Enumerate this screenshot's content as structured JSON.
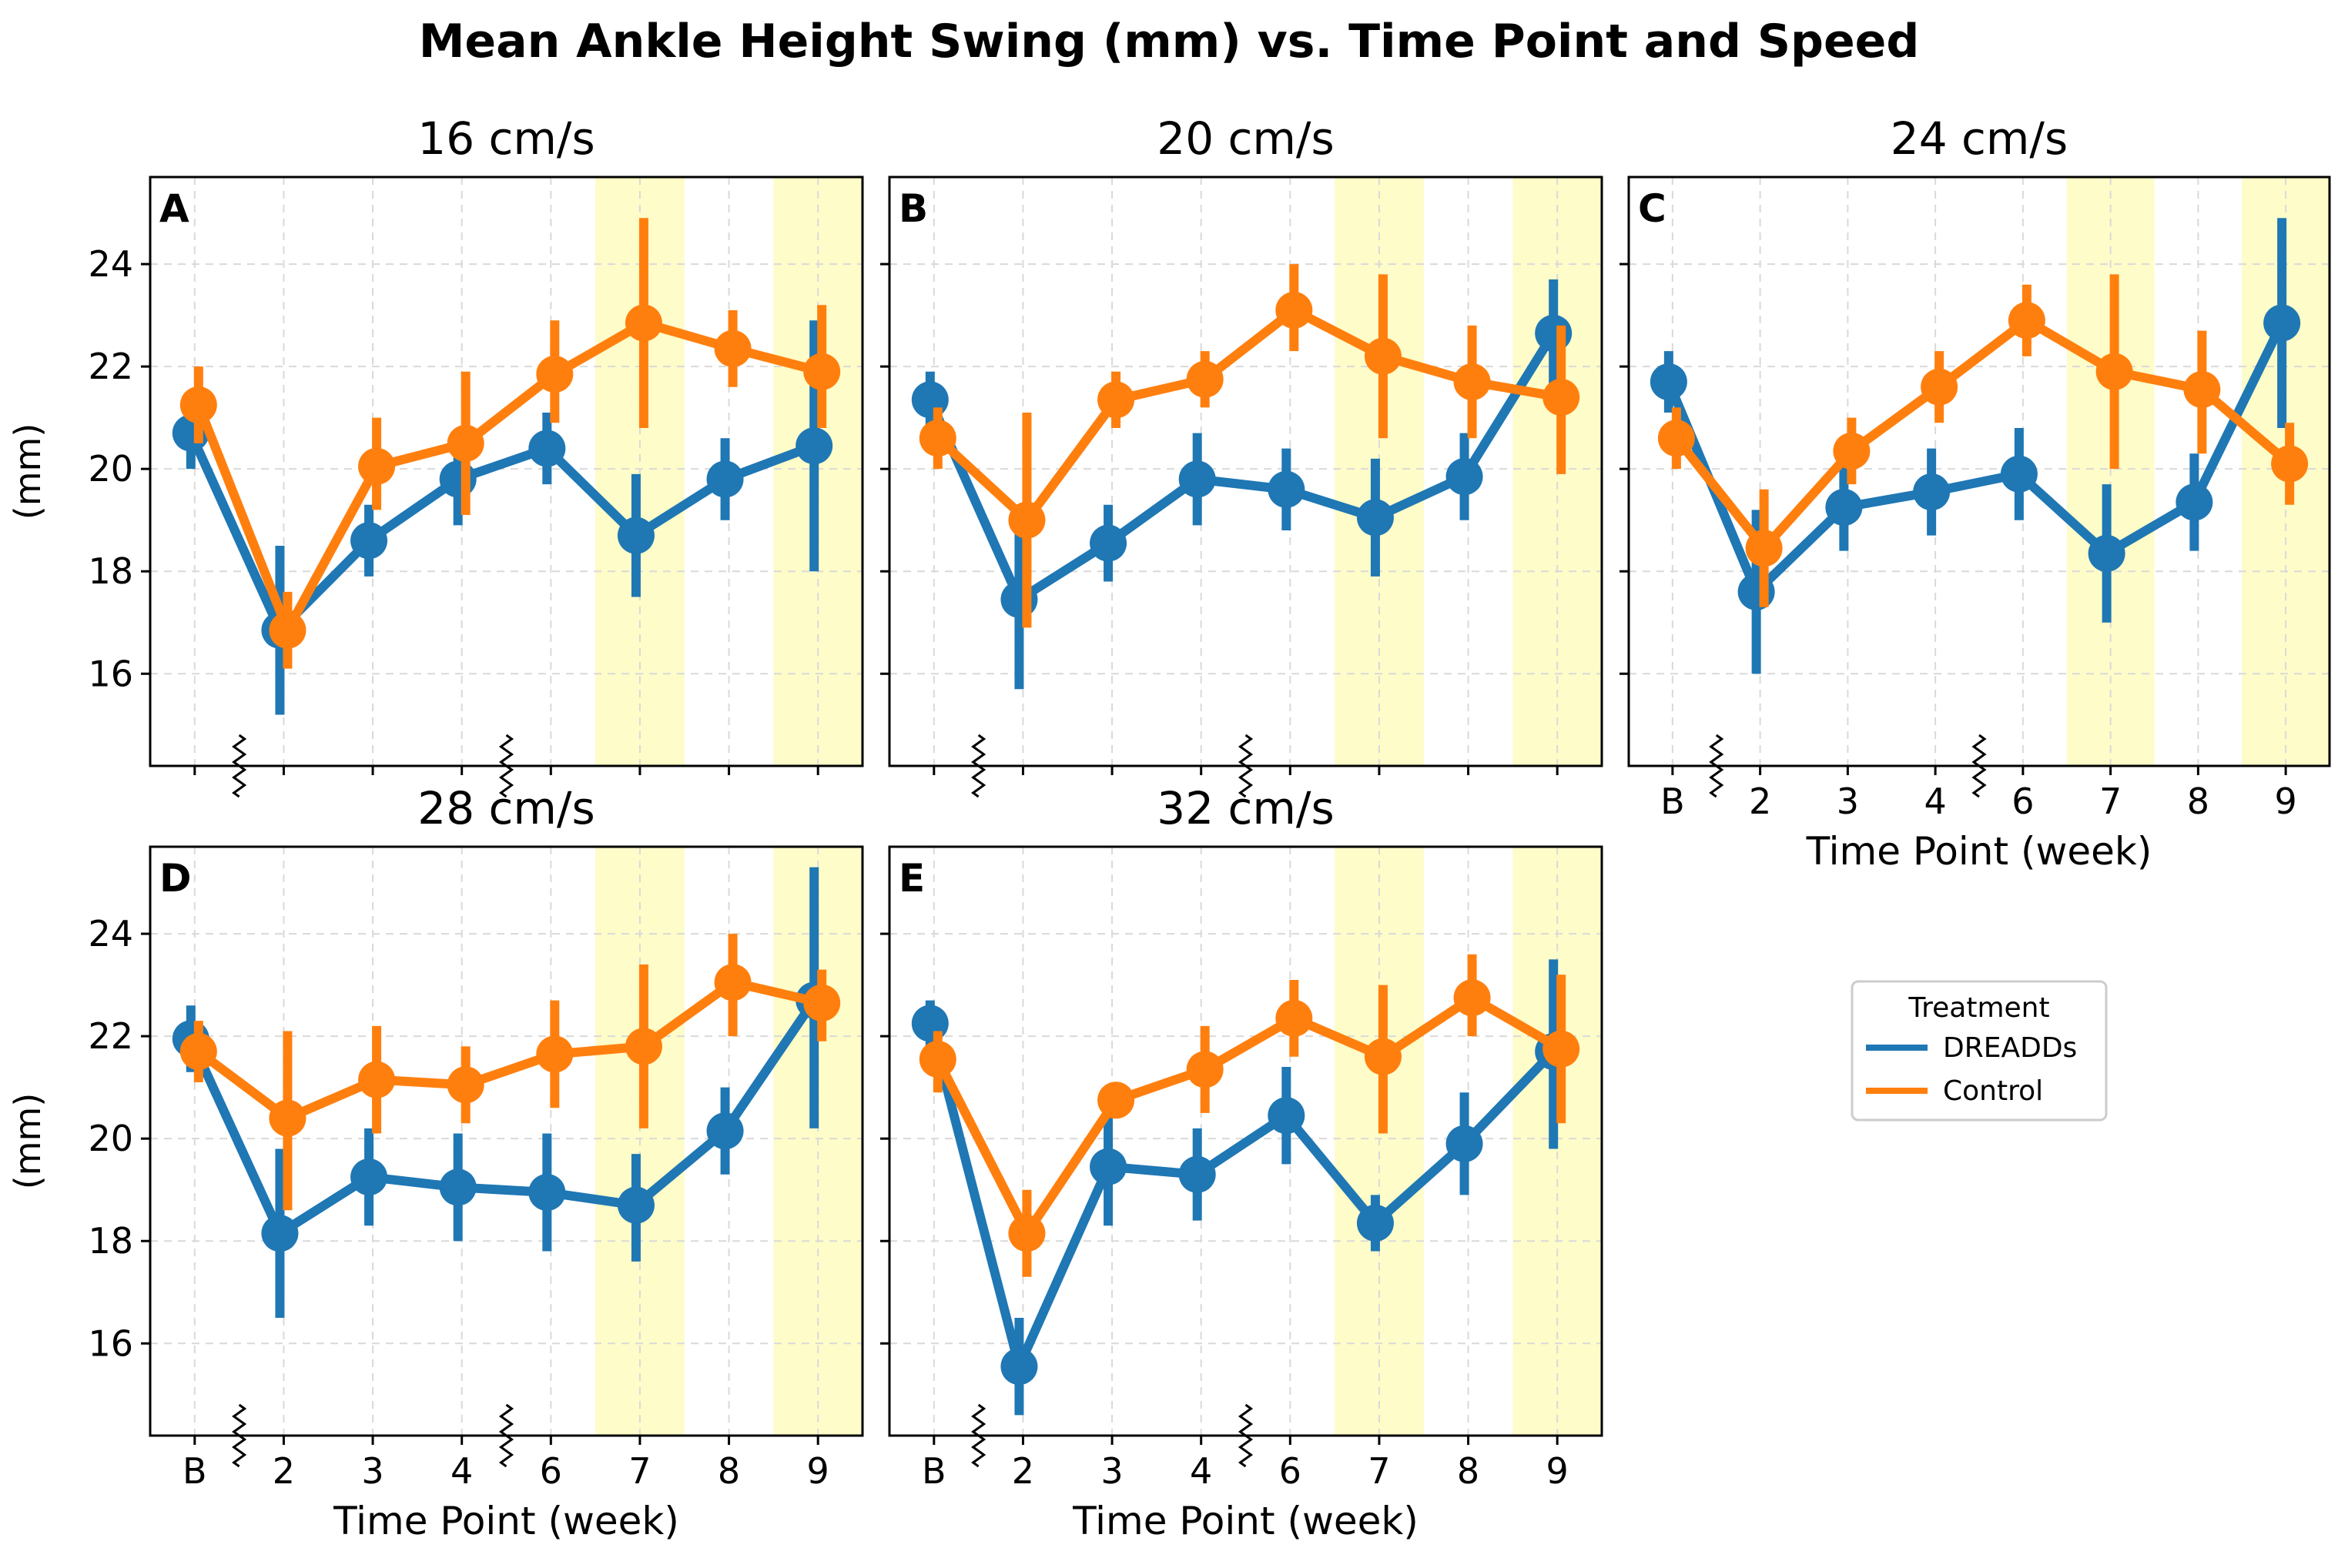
{
  "figure": {
    "title": "Mean Ankle Height Swing (mm) vs. Time Point and Speed"
  },
  "legend": {
    "title": "Treatment",
    "items": [
      "DREADDs",
      "Control"
    ]
  },
  "colors": {
    "dreadds": "#1f77b4",
    "control": "#ff7f0e",
    "highlight": "#fefcc8",
    "grid": "#d9d9d9"
  },
  "chart_data": [
    {
      "type": "line",
      "panel_letter": "A",
      "title": "16 cm/s",
      "xlabel": "",
      "ylabel": "(mm)",
      "x": [
        "B",
        "2",
        "3",
        "4",
        "6",
        "7",
        "8",
        "9"
      ],
      "x_tick_labels_shown": false,
      "ylim": [
        14.2,
        25.7
      ],
      "yticks": [
        16,
        18,
        20,
        22,
        24
      ],
      "grid": true,
      "highlighted_weeks": [
        "7",
        "9"
      ],
      "axis_breaks_after": [
        "B",
        "4"
      ],
      "series": [
        {
          "name": "DREADDs",
          "values": [
            20.7,
            16.85,
            18.6,
            19.8,
            20.4,
            18.7,
            19.8,
            20.45
          ],
          "err_low": [
            20.0,
            15.2,
            17.9,
            18.9,
            19.7,
            17.5,
            19.0,
            18.0
          ],
          "err_high": [
            21.3,
            18.5,
            19.3,
            20.7,
            21.1,
            19.9,
            20.6,
            22.9
          ]
        },
        {
          "name": "Control",
          "values": [
            21.25,
            16.85,
            20.05,
            20.5,
            21.85,
            22.85,
            22.35,
            21.9
          ],
          "err_low": [
            20.5,
            16.1,
            19.2,
            19.1,
            20.9,
            20.8,
            21.6,
            20.8
          ],
          "err_high": [
            22.0,
            17.6,
            21.0,
            21.9,
            22.9,
            24.9,
            23.1,
            23.2
          ]
        }
      ]
    },
    {
      "type": "line",
      "panel_letter": "B",
      "title": "20 cm/s",
      "xlabel": "",
      "ylabel": "",
      "x": [
        "B",
        "2",
        "3",
        "4",
        "6",
        "7",
        "8",
        "9"
      ],
      "x_tick_labels_shown": false,
      "ylim": [
        14.2,
        25.7
      ],
      "yticks": [
        16,
        18,
        20,
        22,
        24
      ],
      "grid": true,
      "highlighted_weeks": [
        "7",
        "9"
      ],
      "axis_breaks_after": [
        "B",
        "4"
      ],
      "series": [
        {
          "name": "DREADDs",
          "values": [
            21.35,
            17.45,
            18.55,
            19.8,
            19.6,
            19.05,
            19.85,
            22.65
          ],
          "err_low": [
            20.7,
            15.7,
            17.8,
            18.9,
            18.8,
            17.9,
            19.0,
            21.6
          ],
          "err_high": [
            21.9,
            19.2,
            19.3,
            20.7,
            20.4,
            20.2,
            20.7,
            23.7
          ]
        },
        {
          "name": "Control",
          "values": [
            20.6,
            19.0,
            21.35,
            21.75,
            23.1,
            22.2,
            21.7,
            21.4
          ],
          "err_low": [
            20.0,
            16.9,
            20.8,
            21.2,
            22.3,
            20.6,
            20.6,
            19.9
          ],
          "err_high": [
            21.2,
            21.1,
            21.9,
            22.3,
            24.0,
            23.8,
            22.8,
            22.8
          ]
        }
      ]
    },
    {
      "type": "line",
      "panel_letter": "C",
      "title": "24 cm/s",
      "xlabel": "Time Point (week)",
      "ylabel": "",
      "x": [
        "B",
        "2",
        "3",
        "4",
        "6",
        "7",
        "8",
        "9"
      ],
      "x_tick_labels_shown": true,
      "ylim": [
        14.2,
        25.7
      ],
      "yticks": [
        16,
        18,
        20,
        22,
        24
      ],
      "grid": true,
      "highlighted_weeks": [
        "7",
        "9"
      ],
      "axis_breaks_after": [
        "B",
        "4"
      ],
      "series": [
        {
          "name": "DREADDs",
          "values": [
            21.7,
            17.6,
            19.25,
            19.55,
            19.9,
            18.35,
            19.35,
            22.85
          ],
          "err_low": [
            21.1,
            16.0,
            18.4,
            18.7,
            19.0,
            17.0,
            18.4,
            20.8
          ],
          "err_high": [
            22.3,
            19.2,
            20.1,
            20.4,
            20.8,
            19.7,
            20.3,
            24.9
          ]
        },
        {
          "name": "Control",
          "values": [
            20.6,
            18.45,
            20.35,
            21.6,
            22.9,
            21.9,
            21.55,
            20.1
          ],
          "err_low": [
            20.0,
            17.3,
            19.7,
            20.9,
            22.2,
            20.0,
            20.3,
            19.3
          ],
          "err_high": [
            21.2,
            19.6,
            21.0,
            22.3,
            23.6,
            23.8,
            22.7,
            20.9
          ]
        }
      ]
    },
    {
      "type": "line",
      "panel_letter": "D",
      "title": "28 cm/s",
      "xlabel": "Time Point (week)",
      "ylabel": "(mm)",
      "x": [
        "B",
        "2",
        "3",
        "4",
        "6",
        "7",
        "8",
        "9"
      ],
      "x_tick_labels_shown": true,
      "ylim": [
        14.2,
        25.7
      ],
      "yticks": [
        16,
        18,
        20,
        22,
        24
      ],
      "grid": true,
      "highlighted_weeks": [
        "7",
        "9"
      ],
      "axis_breaks_after": [
        "B",
        "4"
      ],
      "series": [
        {
          "name": "DREADDs",
          "values": [
            21.95,
            18.15,
            19.25,
            19.05,
            18.95,
            18.7,
            20.15,
            22.7
          ],
          "err_low": [
            21.3,
            16.5,
            18.3,
            18.0,
            17.8,
            17.6,
            19.3,
            20.2
          ],
          "err_high": [
            22.6,
            19.8,
            20.2,
            20.1,
            20.1,
            19.7,
            21.0,
            25.3
          ]
        },
        {
          "name": "Control",
          "values": [
            21.7,
            20.4,
            21.15,
            21.05,
            21.65,
            21.8,
            23.05,
            22.65
          ],
          "err_low": [
            21.1,
            18.6,
            20.1,
            20.3,
            20.6,
            20.2,
            22.0,
            21.9
          ],
          "err_high": [
            22.3,
            22.1,
            22.2,
            21.8,
            22.7,
            23.4,
            24.0,
            23.3
          ]
        }
      ]
    },
    {
      "type": "line",
      "panel_letter": "E",
      "title": "32 cm/s",
      "xlabel": "Time Point (week)",
      "ylabel": "",
      "x": [
        "B",
        "2",
        "3",
        "4",
        "6",
        "7",
        "8",
        "9"
      ],
      "x_tick_labels_shown": true,
      "ylim": [
        14.2,
        25.7
      ],
      "yticks": [
        16,
        18,
        20,
        22,
        24
      ],
      "grid": true,
      "highlighted_weeks": [
        "7",
        "9"
      ],
      "axis_breaks_after": [
        "B",
        "4"
      ],
      "series": [
        {
          "name": "DREADDs",
          "values": [
            22.25,
            15.55,
            19.45,
            19.3,
            20.45,
            18.35,
            19.9,
            21.7
          ],
          "err_low": [
            21.7,
            14.6,
            18.3,
            18.4,
            19.5,
            17.8,
            18.9,
            19.8
          ],
          "err_high": [
            22.7,
            16.5,
            20.6,
            20.2,
            21.4,
            18.9,
            20.9,
            23.5
          ]
        },
        {
          "name": "Control",
          "values": [
            21.55,
            18.15,
            20.75,
            21.35,
            22.35,
            21.6,
            22.75,
            21.75
          ],
          "err_low": [
            20.9,
            17.3,
            20.4,
            20.5,
            21.6,
            20.1,
            22.0,
            20.3
          ],
          "err_high": [
            22.1,
            19.0,
            21.1,
            22.2,
            23.1,
            23.0,
            23.6,
            23.2
          ]
        }
      ]
    }
  ]
}
